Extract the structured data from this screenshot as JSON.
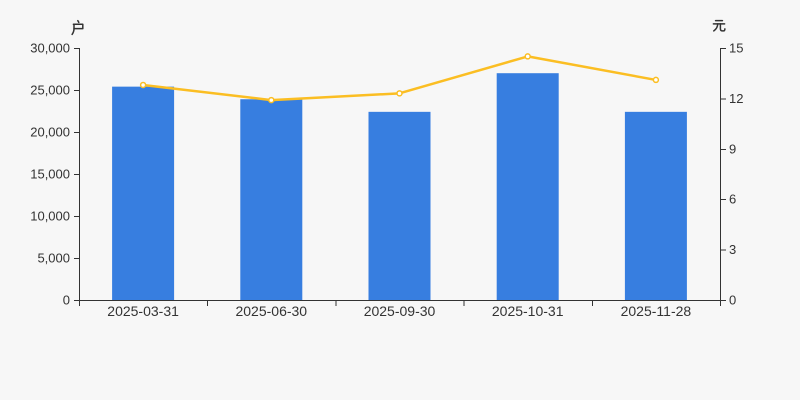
{
  "page": {
    "background": "#f7f7f7"
  },
  "chart_data": {
    "type": "bar+line",
    "categories": [
      "2025-03-31",
      "2025-06-30",
      "2025-09-30",
      "2025-10-31",
      "2025-11-28"
    ],
    "series": [
      {
        "id": "bar-series",
        "type": "bar",
        "y_axis": "left",
        "values": [
          25400,
          23900,
          22400,
          27000,
          22400
        ],
        "color": "#377EE0"
      },
      {
        "id": "line-series",
        "type": "line",
        "y_axis": "right",
        "values": [
          12.8,
          11.9,
          12.3,
          14.5,
          13.1
        ],
        "color": "#FBBE23",
        "marker": "open-circle",
        "marker_fill": "#ffffff"
      }
    ],
    "left_axis": {
      "name": "户",
      "min": 0,
      "max": 30000,
      "ticks": [
        0,
        5000,
        10000,
        15000,
        20000,
        25000,
        30000
      ],
      "tick_labels": [
        "0",
        "5,000",
        "10,000",
        "15,000",
        "20,000",
        "25,000",
        "30,000"
      ]
    },
    "right_axis": {
      "name": "元",
      "min": 0,
      "max": 15,
      "ticks": [
        0,
        3,
        6,
        9,
        12,
        15
      ],
      "tick_labels": [
        "0",
        "3",
        "6",
        "9",
        "12",
        "15"
      ]
    },
    "x_axis": {
      "tick_labels": [
        "2025-03-31",
        "2025-06-30",
        "2025-09-30",
        "2025-10-31",
        "2025-11-28"
      ]
    },
    "grid": false,
    "legend": "none",
    "styles": {
      "axis_color": "#333333",
      "label_color": "#333333",
      "background": "#f7f7f7"
    }
  }
}
